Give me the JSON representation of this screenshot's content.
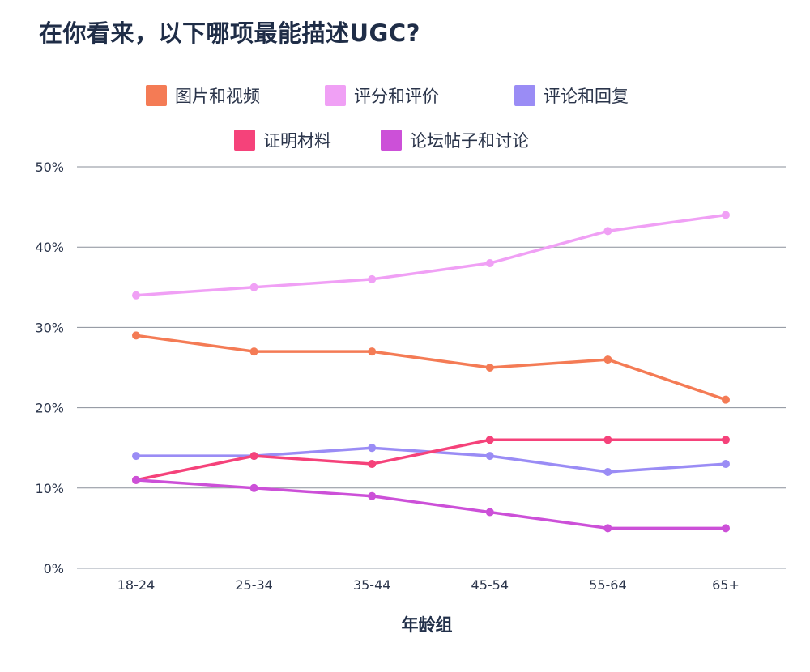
{
  "title": "在你看来，以下哪项最能描述UGC?",
  "chart_data": {
    "type": "line",
    "title": "在你看来，以下哪项最能描述UGC?",
    "xlabel": "年龄组",
    "ylabel": "",
    "categories": [
      "18-24",
      "25-34",
      "35-44",
      "45-54",
      "55-64",
      "65+"
    ],
    "ylim": [
      0,
      50
    ],
    "yticks": [
      "0%",
      "10%",
      "20%",
      "30%",
      "40%",
      "50%"
    ],
    "grid": "horizontal",
    "legend_position": "top",
    "series": [
      {
        "name": "图片和视频",
        "color": "#f47b55",
        "values": [
          29,
          27,
          27,
          25,
          26,
          21
        ]
      },
      {
        "name": "评分和评价",
        "color": "#f0a0f5",
        "values": [
          34,
          35,
          36,
          38,
          42,
          44
        ]
      },
      {
        "name": "评论和回复",
        "color": "#9a8cf5",
        "values": [
          14,
          14,
          15,
          14,
          12,
          13
        ]
      },
      {
        "name": "证明材料",
        "color": "#f5427a",
        "values": [
          11,
          14,
          13,
          16,
          16,
          16
        ]
      },
      {
        "name": "论坛帖子和讨论",
        "color": "#cc50d8",
        "values": [
          11,
          10,
          9,
          7,
          5,
          5
        ]
      }
    ]
  }
}
